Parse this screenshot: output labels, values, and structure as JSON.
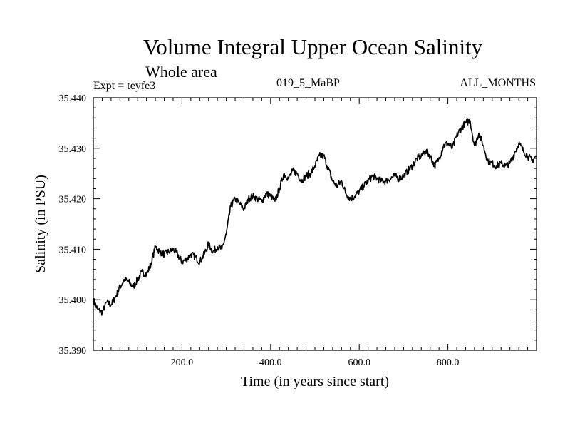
{
  "header": {
    "title": "Volume Integral Upper Ocean Salinity",
    "subtitle": "Whole area",
    "expt": "Expt = teyfe3",
    "center_label": "019_5_MaBP",
    "right_label": "ALL_MONTHS"
  },
  "chart_data": {
    "type": "line",
    "title": "Volume Integral Upper Ocean Salinity",
    "xlabel": "Time (in years since start)",
    "ylabel": "Salinity (in PSU)",
    "xlim": [
      0,
      1000
    ],
    "ylim": [
      35.39,
      35.44
    ],
    "x_ticks": [
      200,
      400,
      600,
      800
    ],
    "x_tick_labels": [
      "200.0",
      "400.0",
      "600.0",
      "800.0"
    ],
    "y_ticks": [
      35.39,
      35.4,
      35.41,
      35.42,
      35.43,
      35.44
    ],
    "y_tick_labels": [
      "35.390",
      "35.400",
      "35.410",
      "35.420",
      "35.430",
      "35.440"
    ],
    "grid": false,
    "series": [
      {
        "name": "teyfe3",
        "color": "#000000",
        "x": [
          0,
          10,
          20,
          30,
          40,
          50,
          60,
          70,
          80,
          90,
          100,
          110,
          120,
          130,
          140,
          150,
          160,
          170,
          180,
          190,
          200,
          210,
          220,
          230,
          240,
          250,
          260,
          270,
          280,
          290,
          300,
          310,
          320,
          330,
          340,
          350,
          360,
          370,
          380,
          390,
          400,
          410,
          420,
          430,
          440,
          450,
          460,
          470,
          480,
          490,
          500,
          510,
          520,
          530,
          540,
          550,
          560,
          570,
          580,
          590,
          600,
          610,
          620,
          630,
          640,
          650,
          660,
          670,
          680,
          690,
          700,
          710,
          720,
          730,
          740,
          750,
          760,
          770,
          780,
          790,
          800,
          810,
          820,
          830,
          840,
          850,
          860,
          870,
          880,
          890,
          900,
          910,
          920,
          930,
          940,
          950,
          960,
          970,
          980,
          990,
          1000
        ],
        "values": [
          35.4,
          35.398,
          35.3975,
          35.3995,
          35.399,
          35.4005,
          35.4025,
          35.404,
          35.4035,
          35.4025,
          35.404,
          35.4055,
          35.405,
          35.407,
          35.4105,
          35.4095,
          35.409,
          35.4095,
          35.41,
          35.409,
          35.4075,
          35.408,
          35.409,
          35.4085,
          35.4075,
          35.409,
          35.411,
          35.4095,
          35.4105,
          35.41,
          35.413,
          35.4185,
          35.42,
          35.419,
          35.418,
          35.42,
          35.4205,
          35.42,
          35.4195,
          35.421,
          35.4205,
          35.4195,
          35.422,
          35.425,
          35.424,
          35.4255,
          35.425,
          35.4235,
          35.4245,
          35.425,
          35.4265,
          35.4285,
          35.4285,
          35.426,
          35.4235,
          35.4225,
          35.4235,
          35.421,
          35.42,
          35.4205,
          35.4215,
          35.4225,
          35.4235,
          35.4245,
          35.424,
          35.4235,
          35.4235,
          35.424,
          35.4245,
          35.424,
          35.4245,
          35.4255,
          35.4265,
          35.428,
          35.4285,
          35.4295,
          35.4285,
          35.4265,
          35.428,
          35.4305,
          35.431,
          35.43,
          35.4325,
          35.434,
          35.435,
          35.4355,
          35.4305,
          35.433,
          35.4305,
          35.4275,
          35.427,
          35.4265,
          35.427,
          35.4265,
          35.427,
          35.429,
          35.431,
          35.4295,
          35.4285,
          35.4275,
          35.4285
        ]
      }
    ]
  }
}
